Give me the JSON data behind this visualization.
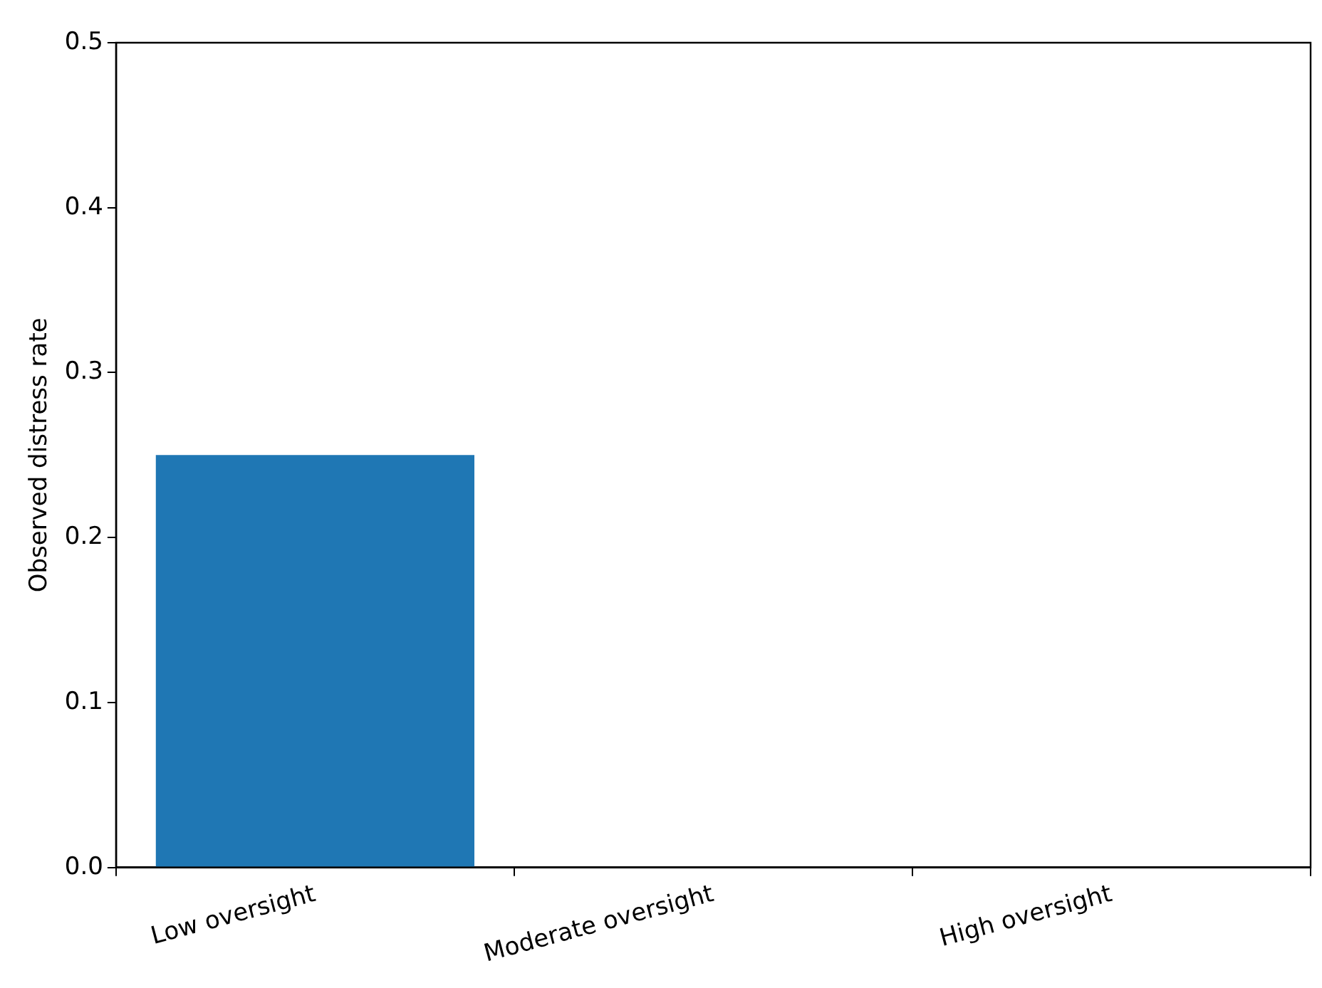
{
  "chart_data": {
    "type": "bar",
    "ylabel": "Observed distress rate",
    "categories": [
      "Low oversight",
      "Moderate oversight",
      "High oversight"
    ],
    "values": [
      0.25,
      0,
      0
    ],
    "color": "#1f77b4",
    "ylim": [
      0,
      0.5
    ],
    "yticks": [
      {
        "value": 0,
        "label": "0.0"
      },
      {
        "value": 0.1,
        "label": "0.1"
      },
      {
        "value": 0.2,
        "label": "0.2"
      },
      {
        "value": 0.3,
        "label": "0.3"
      },
      {
        "value": 0.4,
        "label": "0.4"
      },
      {
        "value": 0.5,
        "label": "0.5"
      }
    ],
    "grid": false,
    "legend": false
  }
}
